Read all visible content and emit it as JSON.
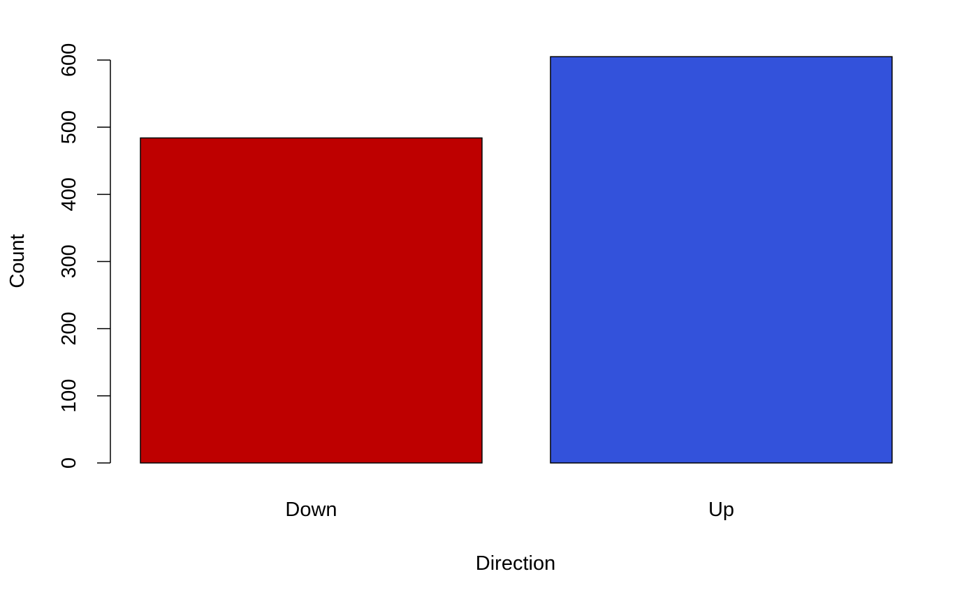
{
  "chart_data": {
    "type": "bar",
    "categories": [
      "Down",
      "Up"
    ],
    "values": [
      484,
      605
    ],
    "colors": [
      "#BE0000",
      "#3352DB"
    ],
    "xlabel": "Direction",
    "ylabel": "Count",
    "ylim": [
      0,
      600
    ],
    "yticks": [
      0,
      100,
      200,
      300,
      400,
      500,
      600
    ],
    "grid": false,
    "legend": "none"
  }
}
